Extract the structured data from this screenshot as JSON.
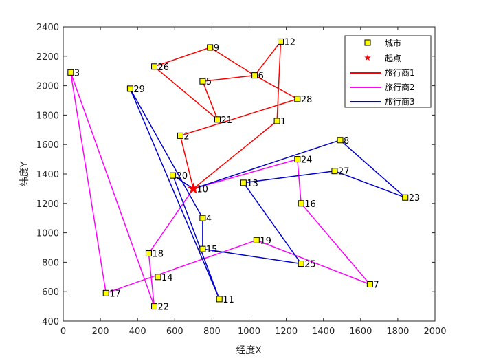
{
  "chart_data": {
    "type": "scatter",
    "xlabel": "经度X",
    "ylabel": "纬度Y",
    "xlim": [
      0,
      2000
    ],
    "ylim": [
      400,
      2400
    ],
    "xticks": [
      0,
      200,
      400,
      600,
      800,
      1000,
      1200,
      1400,
      1600,
      1800,
      2000
    ],
    "yticks": [
      400,
      600,
      800,
      1000,
      1200,
      1400,
      1600,
      1800,
      2000,
      2200,
      2400
    ],
    "legend_position": "top-right",
    "depot": {
      "name": "起点",
      "x": 700,
      "y": 1300,
      "label": "10",
      "color": "#ff0000"
    },
    "cities": [
      {
        "label": "1",
        "x": 1150,
        "y": 1760
      },
      {
        "label": "2",
        "x": 630,
        "y": 1660
      },
      {
        "label": "3",
        "x": 40,
        "y": 2090
      },
      {
        "label": "4",
        "x": 750,
        "y": 1100
      },
      {
        "label": "5",
        "x": 750,
        "y": 2030
      },
      {
        "label": "6",
        "x": 1030,
        "y": 2070
      },
      {
        "label": "7",
        "x": 1650,
        "y": 650
      },
      {
        "label": "8",
        "x": 1490,
        "y": 1630
      },
      {
        "label": "9",
        "x": 790,
        "y": 2260
      },
      {
        "label": "11",
        "x": 840,
        "y": 550
      },
      {
        "label": "12",
        "x": 1170,
        "y": 2300
      },
      {
        "label": "13",
        "x": 970,
        "y": 1340
      },
      {
        "label": "14",
        "x": 510,
        "y": 700
      },
      {
        "label": "15",
        "x": 750,
        "y": 890
      },
      {
        "label": "16",
        "x": 1280,
        "y": 1200
      },
      {
        "label": "17",
        "x": 230,
        "y": 590
      },
      {
        "label": "18",
        "x": 460,
        "y": 860
      },
      {
        "label": "19",
        "x": 1040,
        "y": 950
      },
      {
        "label": "20",
        "x": 590,
        "y": 1390
      },
      {
        "label": "21",
        "x": 830,
        "y": 1770
      },
      {
        "label": "22",
        "x": 490,
        "y": 500
      },
      {
        "label": "23",
        "x": 1840,
        "y": 1240
      },
      {
        "label": "24",
        "x": 1260,
        "y": 1500
      },
      {
        "label": "25",
        "x": 1280,
        "y": 790
      },
      {
        "label": "26",
        "x": 490,
        "y": 2130
      },
      {
        "label": "27",
        "x": 1460,
        "y": 1420
      },
      {
        "label": "28",
        "x": 1260,
        "y": 1910
      },
      {
        "label": "29",
        "x": 360,
        "y": 1980
      }
    ],
    "series": [
      {
        "name": "城市",
        "marker": "square",
        "color": "#ffff00",
        "edge": "#000000"
      },
      {
        "name": "起点",
        "marker": "star",
        "color": "#ff0000"
      },
      {
        "name": "旅行商1",
        "color": "#ff0000",
        "route": [
          "10",
          "1",
          "12",
          "6",
          "9",
          "26",
          "21",
          "5",
          "6",
          "28",
          "2",
          "10"
        ]
      },
      {
        "name": "旅行商2",
        "color": "#ff00ff",
        "route": [
          "10",
          "24",
          "16",
          "7",
          "19",
          "17",
          "3",
          "22",
          "18",
          "10"
        ]
      },
      {
        "name": "旅行商3",
        "color": "#0000cc",
        "route": [
          "10",
          "8",
          "23",
          "27",
          "13",
          "25",
          "15",
          "4",
          "29",
          "11",
          "20",
          "10"
        ]
      }
    ]
  }
}
